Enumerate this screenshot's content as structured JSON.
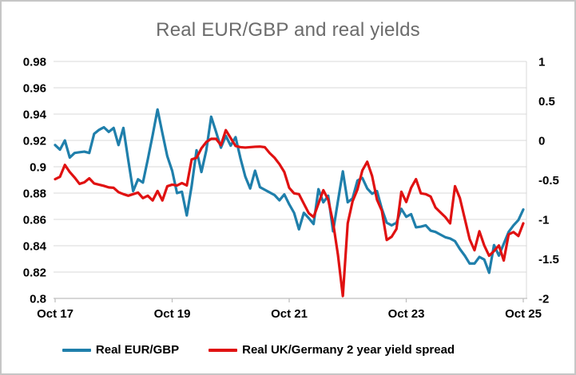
{
  "chart_data": {
    "type": "line",
    "title": "Real EUR/GBP and real yields",
    "grid_color": "#d9d9d9",
    "axis_color": "#bfbfbf",
    "title_color": "#6b6b6b",
    "legend_position": "bottom",
    "x_axis": {
      "labels": [
        "Oct 17",
        "Oct 19",
        "Oct 21",
        "Oct 23",
        "Oct 25"
      ],
      "tick_positions_months": [
        0,
        24,
        48,
        72,
        96
      ]
    },
    "left_axis": {
      "labels": [
        "0.98",
        "0.96",
        "0.94",
        "0.92",
        "0.9",
        "0.88",
        "0.86",
        "0.84",
        "0.82",
        "0.8"
      ],
      "values": [
        0.98,
        0.96,
        0.94,
        0.92,
        0.9,
        0.88,
        0.86,
        0.84,
        0.82,
        0.8
      ],
      "min": 0.8,
      "max": 0.98
    },
    "right_axis": {
      "labels": [
        "1",
        "0.5",
        "0",
        "-0.5",
        "-1",
        "-1.5",
        "-2"
      ],
      "values": [
        1,
        0.5,
        0,
        -0.5,
        -1,
        -1.5,
        -2
      ],
      "min": -2,
      "max": 1
    },
    "series": [
      {
        "name": "Real EUR/GBP",
        "color": "#1f7fab",
        "axis": "left",
        "values": [
          0.9165,
          0.913,
          0.92,
          0.907,
          0.9105,
          0.911,
          0.9115,
          0.9105,
          0.925,
          0.928,
          0.93,
          0.9265,
          0.9295,
          0.9165,
          0.9295,
          0.905,
          0.8815,
          0.8905,
          0.888,
          0.9055,
          0.924,
          0.9435,
          0.9255,
          0.908,
          0.897,
          0.88,
          0.881,
          0.863,
          0.8855,
          0.9125,
          0.896,
          0.9125,
          0.938,
          0.9265,
          0.9145,
          0.9235,
          0.916,
          0.9225,
          0.9065,
          0.8925,
          0.8835,
          0.897,
          0.8845,
          0.8825,
          0.8805,
          0.8785,
          0.8745,
          0.879,
          0.8715,
          0.865,
          0.8525,
          0.865,
          0.861,
          0.8565,
          0.883,
          0.873,
          0.878,
          0.851,
          0.874,
          0.8965,
          0.873,
          0.876,
          0.8895,
          0.8915,
          0.8835,
          0.8795,
          0.8815,
          0.868,
          0.8575,
          0.8555,
          0.8575,
          0.868,
          0.862,
          0.864,
          0.854,
          0.8545,
          0.8555,
          0.8515,
          0.8505,
          0.8485,
          0.8465,
          0.8455,
          0.8435,
          0.8375,
          0.8325,
          0.8265,
          0.8265,
          0.8315,
          0.8295,
          0.8195,
          0.8405,
          0.8325,
          0.8415,
          0.8505,
          0.8555,
          0.8595,
          0.8675
        ]
      },
      {
        "name": "Real UK/Germany 2 year yield spread",
        "color": "#e01111",
        "axis": "right",
        "values": [
          -0.49,
          -0.46,
          -0.31,
          -0.4,
          -0.47,
          -0.55,
          -0.53,
          -0.48,
          -0.545,
          -0.56,
          -0.575,
          -0.595,
          -0.6,
          -0.655,
          -0.68,
          -0.7,
          -0.68,
          -0.66,
          -0.73,
          -0.7,
          -0.76,
          -0.64,
          -0.76,
          -0.58,
          -0.56,
          -0.57,
          -0.54,
          -0.57,
          -0.24,
          -0.22,
          -0.1,
          -0.02,
          0.02,
          0.02,
          -0.06,
          0.13,
          0.03,
          -0.07,
          -0.085,
          -0.09,
          -0.085,
          -0.08,
          -0.078,
          -0.086,
          -0.16,
          -0.22,
          -0.3,
          -0.4,
          -0.6,
          -0.67,
          -0.68,
          -0.8,
          -0.92,
          -0.97,
          -0.8,
          -0.63,
          -0.75,
          -1.04,
          -1.45,
          -1.97,
          -1.05,
          -0.77,
          -0.62,
          -0.38,
          -0.27,
          -0.45,
          -0.75,
          -0.89,
          -1.26,
          -1.22,
          -1.12,
          -0.65,
          -0.78,
          -0.6,
          -0.49,
          -0.67,
          -0.68,
          -0.71,
          -0.85,
          -0.91,
          -0.97,
          -1.05,
          -0.58,
          -0.73,
          -0.99,
          -1.25,
          -1.39,
          -1.15,
          -1.33,
          -1.46,
          -1.4,
          -1.33,
          -1.52,
          -1.19,
          -1.16,
          -1.21,
          -1.05
        ]
      }
    ]
  }
}
